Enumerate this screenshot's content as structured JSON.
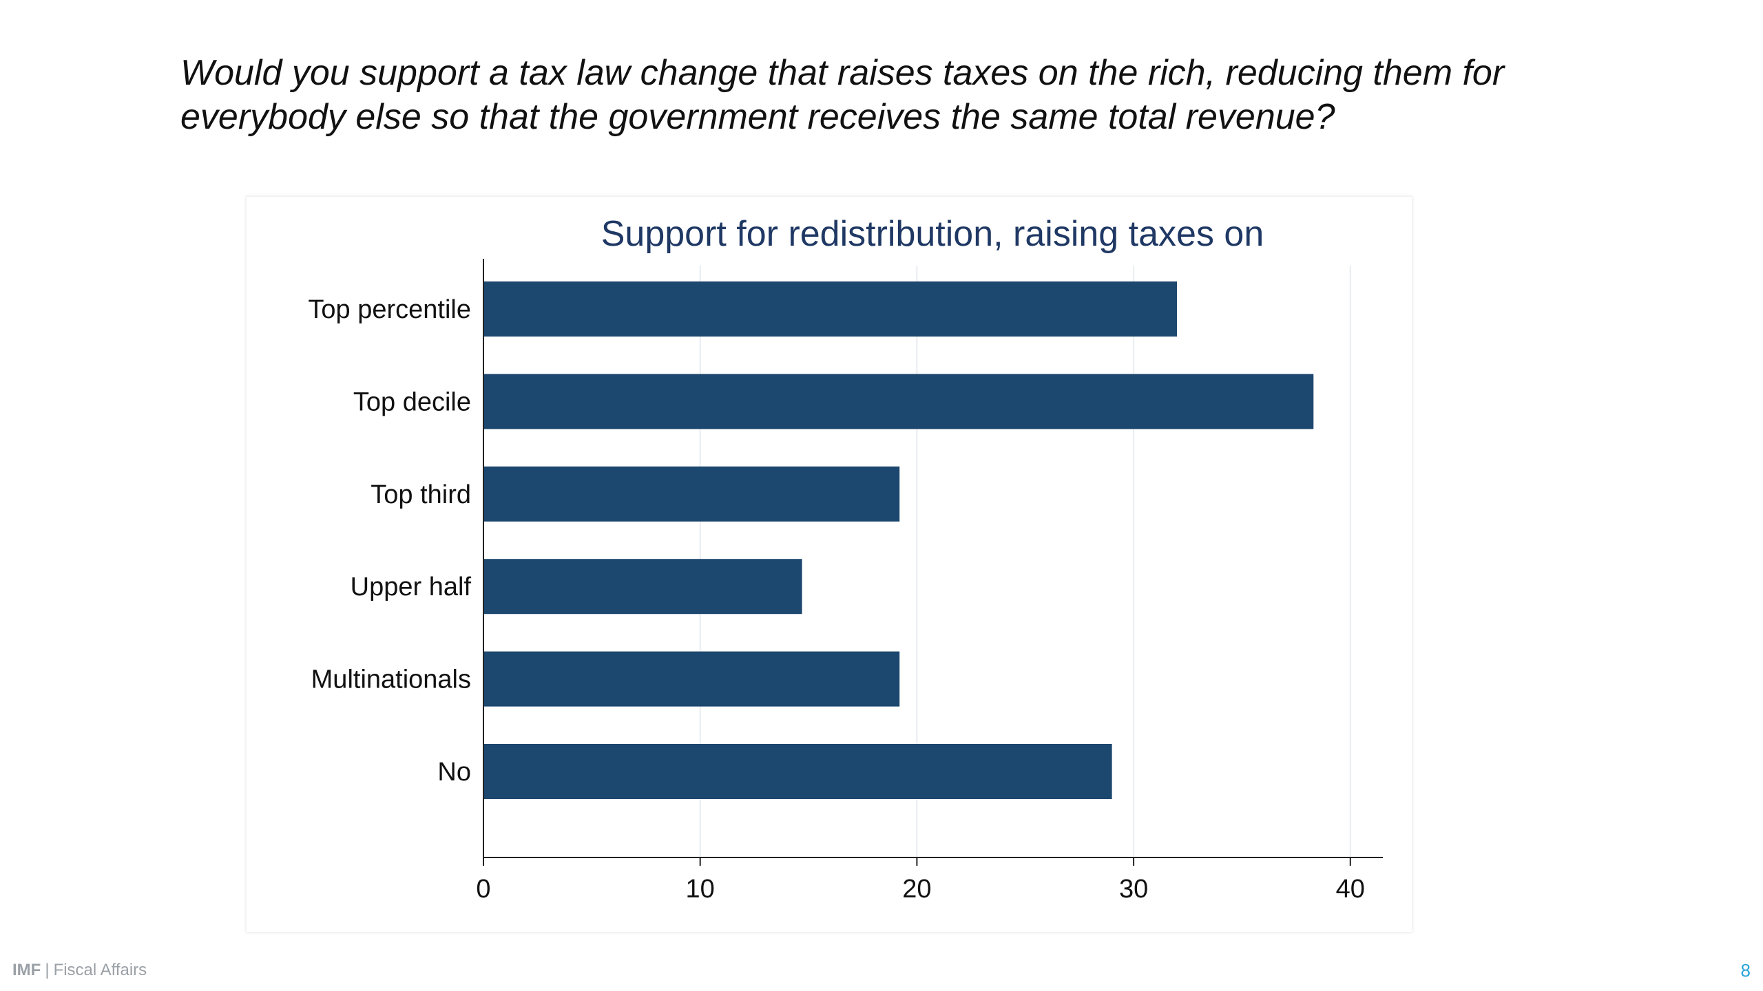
{
  "slide": {
    "question": "Would you support a tax law change that raises taxes on the rich, reducing them for everybody else so that the government receives the same total revenue?",
    "footer": {
      "org": "IMF",
      "separator": "|",
      "department": "Fiscal Affairs"
    },
    "page_number": "8"
  },
  "chart_data": {
    "type": "bar",
    "orientation": "horizontal",
    "title": "Support for redistribution, raising taxes on",
    "xlabel": "",
    "ylabel": "",
    "categories": [
      "Top percentile",
      "Top decile",
      "Top third",
      "Upper half",
      "Multinationals",
      "No"
    ],
    "values": [
      32,
      38.3,
      19.2,
      14.7,
      19.2,
      29
    ],
    "xlim": [
      0,
      41.5
    ],
    "xticks": [
      0,
      10,
      20,
      30,
      40
    ],
    "xtick_labels": [
      "0",
      "10",
      "20",
      "30",
      "40"
    ],
    "grid": true,
    "bar_color": "#1c476e",
    "title_color": "#1f3864",
    "grid_color": "#e8edf1"
  }
}
